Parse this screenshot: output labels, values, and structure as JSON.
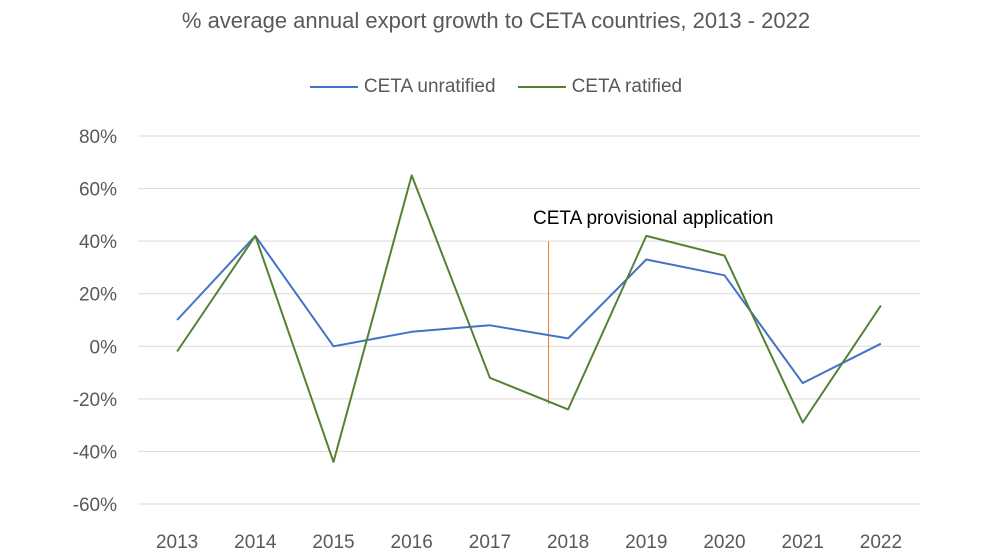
{
  "chart_data": {
    "type": "line",
    "title": "% average annual export growth to CETA countries, 2013 - 2022",
    "xlabel": "",
    "ylabel": "",
    "categories": [
      "2013",
      "2014",
      "2015",
      "2016",
      "2017",
      "2018",
      "2019",
      "2020",
      "2021",
      "2022"
    ],
    "ylim": [
      -0.6,
      0.8
    ],
    "y_ticks": [
      0.8,
      0.6,
      0.4,
      0.2,
      0,
      -0.2,
      -0.4,
      -0.6
    ],
    "y_tick_labels": [
      "80%",
      "60%",
      "40%",
      "20%",
      "0%",
      "-20%",
      "-40%",
      "-60%"
    ],
    "grid": true,
    "legend_position": "top-center",
    "series": [
      {
        "name": "CETA unratified",
        "color": "#4472C4",
        "values": [
          0.1,
          0.42,
          0.0,
          0.055,
          0.08,
          0.03,
          0.33,
          0.27,
          -0.14,
          0.01
        ]
      },
      {
        "name": "CETA ratified",
        "color": "#548235",
        "values": [
          -0.02,
          0.42,
          -0.44,
          0.65,
          -0.12,
          -0.24,
          0.42,
          0.345,
          -0.29,
          0.155
        ]
      }
    ],
    "annotation": {
      "text": "CETA provisional application",
      "x_position": 4.75,
      "y_from": -0.22,
      "y_to": 0.4,
      "color": "#ED7D31"
    }
  }
}
